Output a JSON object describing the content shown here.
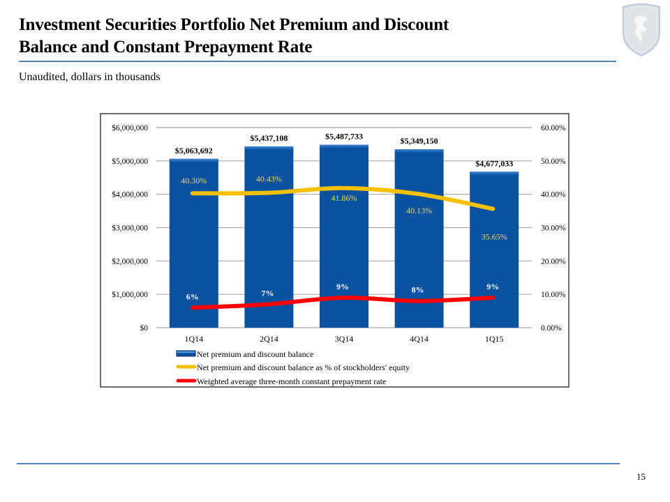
{
  "header": {
    "title_line1": "Investment Securities Portfolio Net Premium and Discount",
    "title_line2": "Balance and Constant Prepayment Rate",
    "subtitle": "Unaudited, dollars in thousands",
    "logo_icon": "shield-lion-crest-icon"
  },
  "footer": {
    "page_number": "15"
  },
  "colors": {
    "accent_rule": "#4f81bd",
    "bar": "#0a52a0",
    "equity_line": "#f5c000",
    "cpr_line": "#ff0000",
    "equity_label": "#f2d36b"
  },
  "chart_data": {
    "type": "bar",
    "title": "",
    "categories": [
      "1Q14",
      "2Q14",
      "3Q14",
      "4Q14",
      "1Q15"
    ],
    "series": [
      {
        "name": "Net premium and discount balance",
        "type": "bar",
        "axis": "left",
        "values": [
          5063692,
          5437108,
          5487733,
          5349150,
          4677033
        ],
        "labels": [
          "$5,063,692",
          "$5,437,108",
          "$5,487,733",
          "$5,349,150",
          "$4,677,033"
        ]
      },
      {
        "name": "Net premium and discount balance as % of stockholders' equity",
        "type": "line",
        "axis": "right",
        "values": [
          40.3,
          40.43,
          41.86,
          40.13,
          35.65
        ],
        "labels": [
          "40.30%",
          "40.43%",
          "41.86%",
          "40.13%",
          "35.65%"
        ]
      },
      {
        "name": "Weighted average three-month constant prepayment rate",
        "type": "line",
        "axis": "right",
        "values": [
          6,
          7,
          9,
          8,
          9
        ],
        "labels": [
          "6%",
          "7%",
          "9%",
          "8%",
          "9%"
        ]
      }
    ],
    "left_axis": {
      "ylim": [
        0,
        6000000
      ],
      "ticks": [
        0,
        1000000,
        2000000,
        3000000,
        4000000,
        5000000,
        6000000
      ],
      "tick_labels": [
        "$0",
        "$1,000,000",
        "$2,000,000",
        "$3,000,000",
        "$4,000,000",
        "$5,000,000",
        "$6,000,000"
      ]
    },
    "right_axis": {
      "ylim": [
        0,
        60
      ],
      "ticks": [
        0,
        10,
        20,
        30,
        40,
        50,
        60
      ],
      "tick_labels": [
        "0.00%",
        "10.00%",
        "20.00%",
        "30.00%",
        "40.00%",
        "50.00%",
        "60.00%"
      ]
    },
    "xlabel": "",
    "ylabel": "",
    "grid": true,
    "legend": {
      "placement": "bottom",
      "entries": [
        "Net premium and discount balance",
        "Net premium and discount balance as % of stockholders' equity",
        "Weighted average three-month constant prepayment rate"
      ]
    }
  }
}
